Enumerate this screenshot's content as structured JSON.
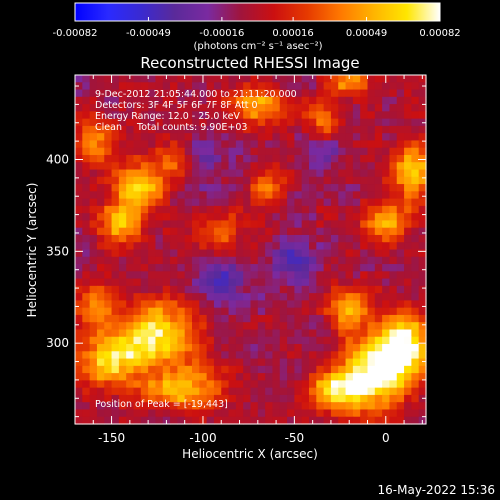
{
  "chart_data": {
    "type": "heatmap",
    "title": "Reconstructed RHESSI Image",
    "xlabel": "Heliocentric X (arcsec)",
    "ylabel": "Heliocentric Y (arcsec)",
    "xlim": [
      -170,
      22
    ],
    "ylim": [
      256,
      446
    ],
    "xticks": [
      -150,
      -100,
      -50,
      0
    ],
    "yticks": [
      300,
      350,
      400
    ],
    "colorbar": {
      "range": [
        -0.00082,
        0.00082
      ],
      "tick_values": [
        -0.00082,
        -0.00049,
        -0.00016,
        0.00016,
        0.00049,
        0.00082
      ],
      "tick_labels": [
        "-0.00082",
        "-0.00049",
        "-0.00016",
        "0.00016",
        "0.00049",
        "0.00082"
      ],
      "unit_label": "(photons cm⁻² s⁻¹ asec⁻²)",
      "colors": [
        "#0000ff",
        "#2a2aff",
        "#3a2ad0",
        "#5a2a9a",
        "#7a2aa0",
        "#a0143c",
        "#cc1010",
        "#e63a00",
        "#ff7800",
        "#ffb400",
        "#ffe600",
        "#ffffff"
      ]
    },
    "annotations": [
      "9-Dec-2012 21:05:44.000 to 21:11:20.000",
      "Detectors: 3F 4F 5F 6F 7F 8F  Att 0",
      "Energy Range: 12.0 - 25.0 keV",
      "Clean     Total counts: 9.90E+03"
    ],
    "peak_label": "Position of Peak = [-19,443]",
    "timestamp": "16-May-2022 15:36",
    "blobs": [
      {
        "x": -5,
        "y": 285,
        "sx": 14,
        "sy": 14,
        "a": 1.0
      },
      {
        "x": 10,
        "y": 300,
        "sx": 10,
        "sy": 12,
        "a": 0.95
      },
      {
        "x": -25,
        "y": 275,
        "sx": 12,
        "sy": 8,
        "a": 0.85
      },
      {
        "x": -20,
        "y": 320,
        "sx": 8,
        "sy": 8,
        "a": 0.7
      },
      {
        "x": -125,
        "y": 305,
        "sx": 16,
        "sy": 12,
        "a": 0.9
      },
      {
        "x": -150,
        "y": 290,
        "sx": 14,
        "sy": 10,
        "a": 0.8
      },
      {
        "x": -110,
        "y": 275,
        "sx": 14,
        "sy": 8,
        "a": 0.75
      },
      {
        "x": -160,
        "y": 320,
        "sx": 8,
        "sy": 10,
        "a": 0.6
      },
      {
        "x": -135,
        "y": 385,
        "sx": 10,
        "sy": 10,
        "a": 0.85
      },
      {
        "x": -145,
        "y": 365,
        "sx": 8,
        "sy": 8,
        "a": 0.7
      },
      {
        "x": -160,
        "y": 410,
        "sx": 8,
        "sy": 10,
        "a": 0.6
      },
      {
        "x": -115,
        "y": 400,
        "sx": 7,
        "sy": 8,
        "a": 0.55
      },
      {
        "x": -70,
        "y": 430,
        "sx": 10,
        "sy": 8,
        "a": 0.65
      },
      {
        "x": -35,
        "y": 420,
        "sx": 8,
        "sy": 8,
        "a": 0.5
      },
      {
        "x": -20,
        "y": 443,
        "sx": 8,
        "sy": 6,
        "a": 0.7
      },
      {
        "x": 15,
        "y": 395,
        "sx": 8,
        "sy": 12,
        "a": 0.75
      },
      {
        "x": 0,
        "y": 365,
        "sx": 10,
        "sy": 8,
        "a": 0.6
      },
      {
        "x": -90,
        "y": 360,
        "sx": 8,
        "sy": 8,
        "a": 0.45
      },
      {
        "x": -65,
        "y": 385,
        "sx": 7,
        "sy": 7,
        "a": 0.45
      },
      {
        "x": -50,
        "y": 345,
        "sx": 8,
        "sy": 8,
        "a": -0.45
      },
      {
        "x": -90,
        "y": 335,
        "sx": 10,
        "sy": 8,
        "a": -0.4
      },
      {
        "x": -35,
        "y": 405,
        "sx": 8,
        "sy": 8,
        "a": -0.35
      },
      {
        "x": -100,
        "y": 400,
        "sx": 10,
        "sy": 10,
        "a": -0.3
      }
    ]
  }
}
